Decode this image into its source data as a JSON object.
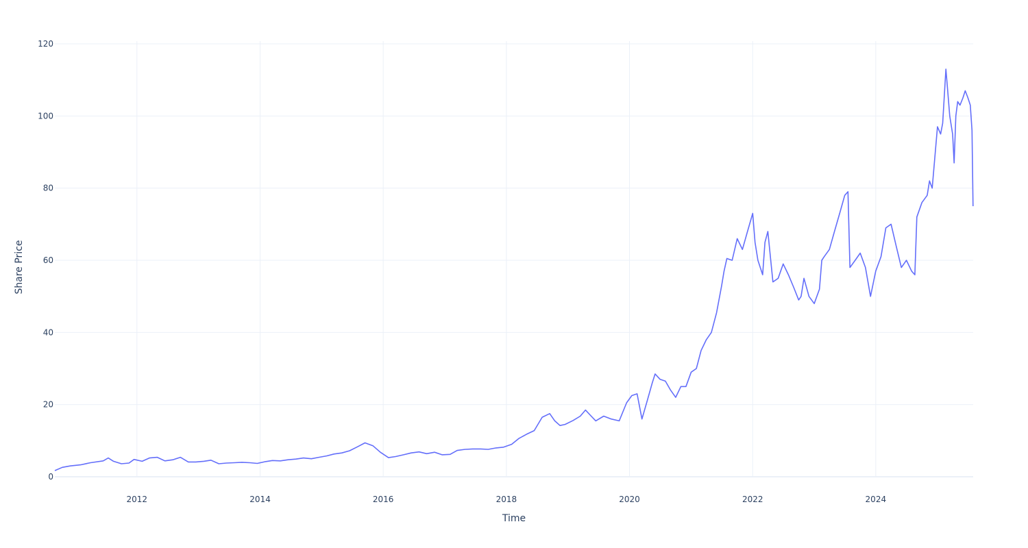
{
  "chart_data": {
    "type": "line",
    "title": "",
    "xlabel": "Time",
    "ylabel": "Share Price",
    "x_type": "date",
    "xlim": [
      "2010-09-01",
      "2025-08-01"
    ],
    "ylim": [
      0,
      120
    ],
    "x_ticks": [
      "2012-01-01",
      "2014-01-01",
      "2016-01-01",
      "2018-01-01",
      "2020-01-01",
      "2022-01-01",
      "2024-01-01"
    ],
    "x_tick_labels": [
      "2012",
      "2014",
      "2016",
      "2018",
      "2020",
      "2022",
      "2024"
    ],
    "y_ticks": [
      0,
      20,
      40,
      60,
      80,
      100,
      120
    ],
    "y_tick_labels": [
      "0",
      "20",
      "40",
      "60",
      "80",
      "100",
      "120"
    ],
    "grid": true,
    "line_color": "#636efa",
    "series": [
      {
        "x": [
          "2010-09-01",
          "2010-10-15",
          "2010-12-01",
          "2011-02-01",
          "2011-04-01",
          "2011-06-15",
          "2011-07-15",
          "2011-08-15",
          "2011-10-01",
          "2011-11-15",
          "2011-12-15",
          "2012-02-01",
          "2012-03-15",
          "2012-05-01",
          "2012-06-15",
          "2012-08-01",
          "2012-09-15",
          "2012-11-01",
          "2012-12-15",
          "2013-02-01",
          "2013-03-15",
          "2013-05-01",
          "2013-06-15",
          "2013-08-01",
          "2013-09-15",
          "2013-11-01",
          "2013-12-15",
          "2014-02-01",
          "2014-03-15",
          "2014-05-01",
          "2014-06-15",
          "2014-08-01",
          "2014-09-15",
          "2014-11-01",
          "2014-12-15",
          "2015-02-01",
          "2015-03-15",
          "2015-05-01",
          "2015-06-15",
          "2015-08-01",
          "2015-09-15",
          "2015-11-01",
          "2015-12-15",
          "2016-02-01",
          "2016-03-15",
          "2016-05-01",
          "2016-06-15",
          "2016-08-01",
          "2016-09-15",
          "2016-11-01",
          "2016-12-15",
          "2017-02-01",
          "2017-03-15",
          "2017-05-01",
          "2017-06-15",
          "2017-08-01",
          "2017-09-15",
          "2017-11-01",
          "2017-12-15",
          "2018-02-01",
          "2018-03-15",
          "2018-05-01",
          "2018-06-15",
          "2018-08-01",
          "2018-09-15",
          "2018-10-15",
          "2018-11-15",
          "2018-12-15",
          "2019-02-01",
          "2019-03-15",
          "2019-04-15",
          "2019-05-15",
          "2019-06-15",
          "2019-08-01",
          "2019-09-15",
          "2019-11-01",
          "2019-12-15",
          "2020-01-15",
          "2020-02-15",
          "2020-03-15",
          "2020-04-15",
          "2020-05-15",
          "2020-06-01",
          "2020-07-01",
          "2020-08-01",
          "2020-09-01",
          "2020-10-01",
          "2020-11-01",
          "2020-12-01",
          "2021-01-01",
          "2021-02-01",
          "2021-03-01",
          "2021-04-01",
          "2021-05-01",
          "2021-06-01",
          "2021-07-01",
          "2021-07-15",
          "2021-08-01",
          "2021-09-01",
          "2021-10-01",
          "2021-11-01",
          "2021-12-01",
          "2022-01-01",
          "2022-01-15",
          "2022-02-01",
          "2022-03-01",
          "2022-03-15",
          "2022-04-01",
          "2022-05-01",
          "2022-06-01",
          "2022-07-01",
          "2022-08-01",
          "2022-09-01",
          "2022-10-01",
          "2022-10-15",
          "2022-11-01",
          "2022-12-01",
          "2023-01-01",
          "2023-02-01",
          "2023-02-15",
          "2023-03-01",
          "2023-04-01",
          "2023-05-01",
          "2023-06-01",
          "2023-07-01",
          "2023-07-20",
          "2023-08-01",
          "2023-09-01",
          "2023-10-01",
          "2023-11-01",
          "2023-12-01",
          "2024-01-01",
          "2024-02-01",
          "2024-03-01",
          "2024-04-01",
          "2024-05-01",
          "2024-06-01",
          "2024-07-01",
          "2024-08-01",
          "2024-08-20",
          "2024-09-01",
          "2024-10-01",
          "2024-11-01",
          "2024-11-15",
          "2024-12-01",
          "2025-01-01",
          "2025-01-20",
          "2025-02-01",
          "2025-02-10",
          "2025-02-20",
          "2025-03-01",
          "2025-03-15",
          "2025-04-01",
          "2025-04-10",
          "2025-04-20",
          "2025-05-01",
          "2025-05-15",
          "2025-06-01",
          "2025-06-15",
          "2025-07-01",
          "2025-07-15",
          "2025-07-25",
          "2025-07-31"
        ],
        "y": [
          1.7,
          2.6,
          3.0,
          3.3,
          3.9,
          4.4,
          5.2,
          4.3,
          3.6,
          3.8,
          4.8,
          4.3,
          5.2,
          5.4,
          4.4,
          4.7,
          5.4,
          4.1,
          4.1,
          4.3,
          4.6,
          3.6,
          3.8,
          3.9,
          4.0,
          3.9,
          3.7,
          4.2,
          4.5,
          4.4,
          4.7,
          4.9,
          5.2,
          5.0,
          5.4,
          5.8,
          6.3,
          6.6,
          7.2,
          8.3,
          9.4,
          8.6,
          6.8,
          5.3,
          5.6,
          6.1,
          6.6,
          6.9,
          6.4,
          6.8,
          6.1,
          6.2,
          7.3,
          7.6,
          7.7,
          7.7,
          7.6,
          8.0,
          8.2,
          9.0,
          10.6,
          11.8,
          12.8,
          16.5,
          17.5,
          15.5,
          14.2,
          14.5,
          15.6,
          16.8,
          18.5,
          17.0,
          15.5,
          16.8,
          16.0,
          15.5,
          20.5,
          22.5,
          23.0,
          16.0,
          21.0,
          26.0,
          28.5,
          27.0,
          26.5,
          24.0,
          22.0,
          25.0,
          25.0,
          29.0,
          30.0,
          35.0,
          38.0,
          40.0,
          45.5,
          53.0,
          57.0,
          60.5,
          60.0,
          66.0,
          63.0,
          68.0,
          73.0,
          65.0,
          60.0,
          56.0,
          65.0,
          68.0,
          54.0,
          55.0,
          59.0,
          56.0,
          52.5,
          49.0,
          50.0,
          55.0,
          50.0,
          48.0,
          52.0,
          60.0,
          61.0,
          63.0,
          68.0,
          73.0,
          78.0,
          79.0,
          58.0,
          60.0,
          62.0,
          58.0,
          50.0,
          57.0,
          61.0,
          69.0,
          70.0,
          64.0,
          58.0,
          60.0,
          57.0,
          56.0,
          72.0,
          76.0,
          78.0,
          82.0,
          80.0,
          97.0,
          95.0,
          98.0,
          105.0,
          113.0,
          108.0,
          100.0,
          95.0,
          87.0,
          100.0,
          104.0,
          103.0,
          105.0,
          107.0,
          105.0,
          103.0,
          96.0,
          75.0
        ]
      }
    ]
  }
}
